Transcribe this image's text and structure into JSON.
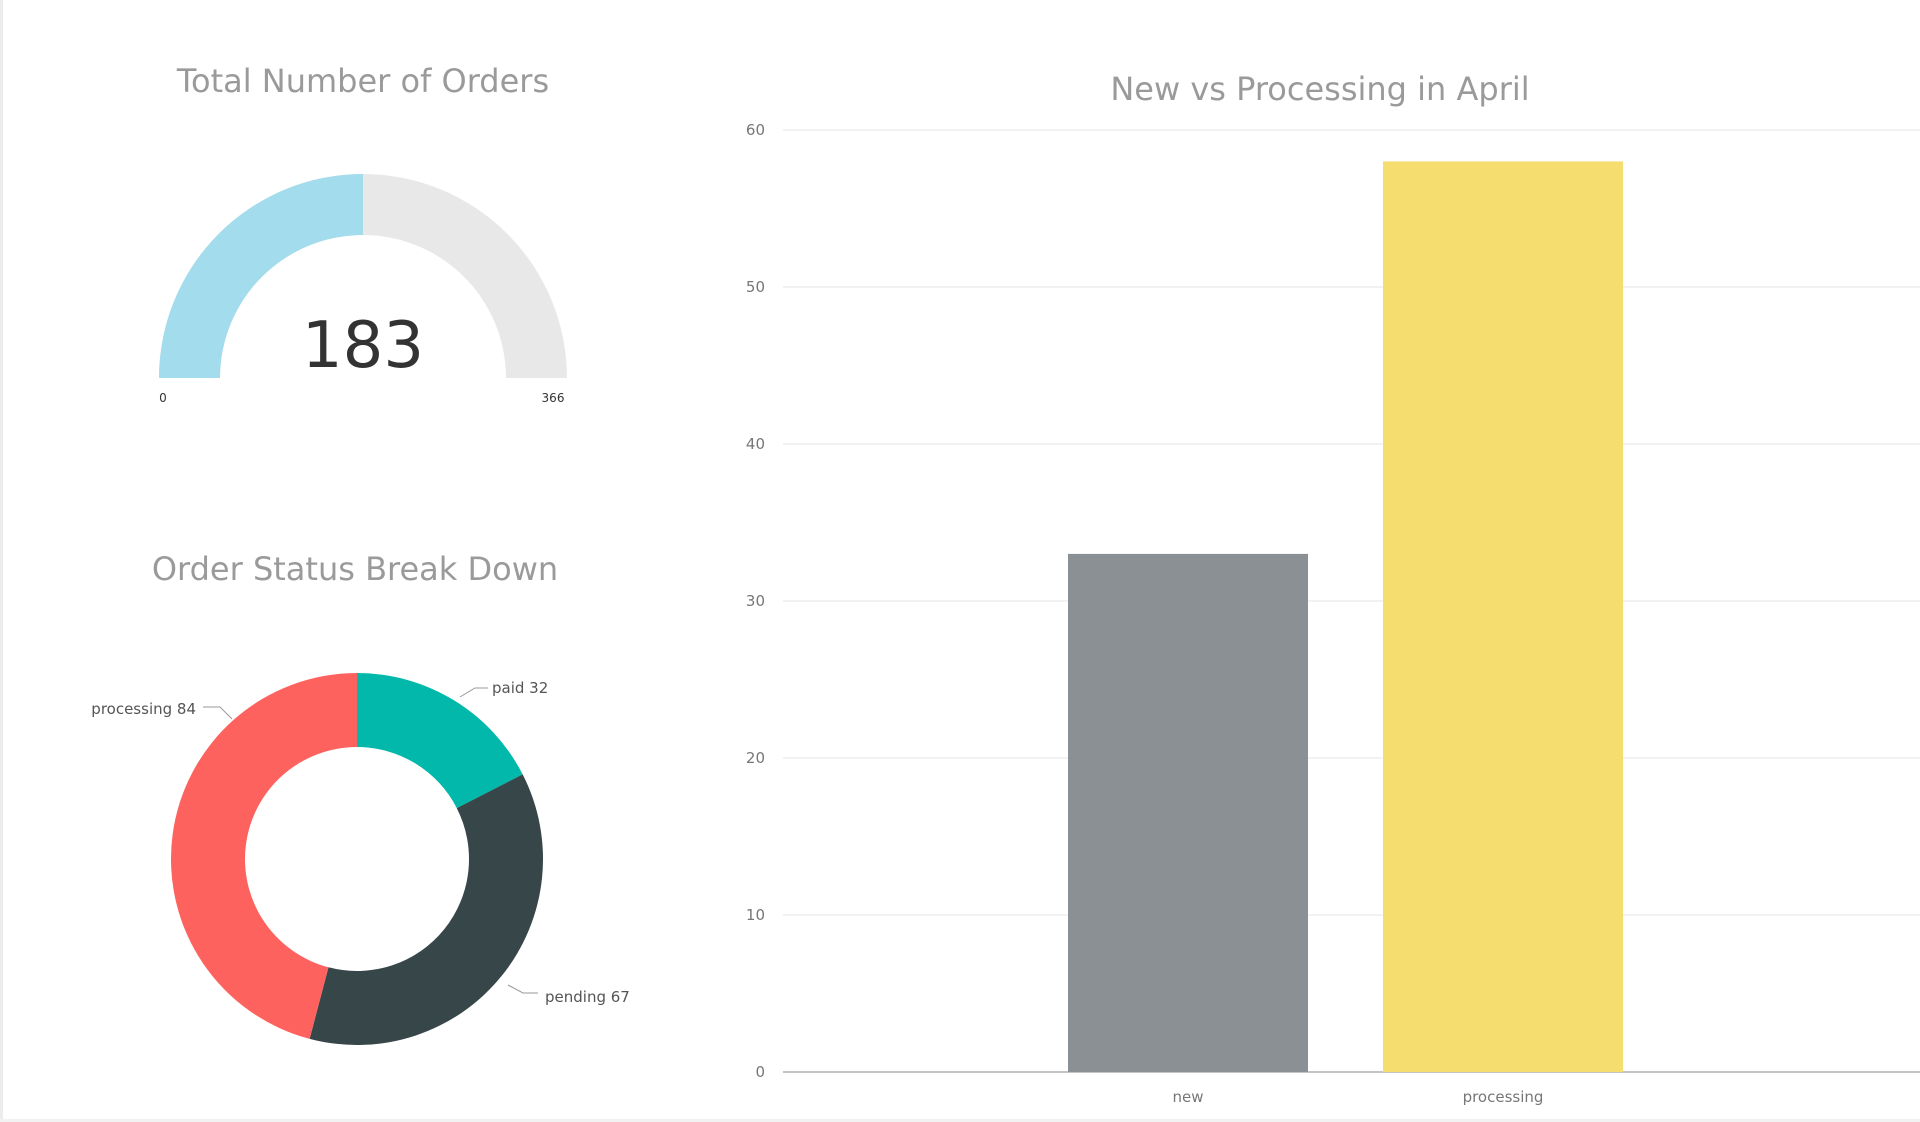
{
  "gauge": {
    "title": "Total Number of Orders",
    "value": 183,
    "value_label": "183",
    "min": 0,
    "min_label": "0",
    "max": 366,
    "max_label": "366",
    "fill_color": "#a3dcec",
    "track_color": "#e8e8e8"
  },
  "donut": {
    "title": "Order Status Break Down",
    "slices": [
      {
        "label": "paid",
        "value": 32,
        "text": "paid 32",
        "color": "#01b8aa"
      },
      {
        "label": "pending",
        "value": 67,
        "text": "pending 67",
        "color": "#374649"
      },
      {
        "label": "processing",
        "value": 84,
        "text": "processing 84",
        "color": "#fd625e"
      }
    ]
  },
  "chart_data": {
    "type": "bar",
    "title": "New vs Processing in April",
    "categories": [
      "new",
      "processing"
    ],
    "values": [
      33,
      58
    ],
    "colors": [
      "#8a9093",
      "#f6dd70"
    ],
    "ylim": [
      0,
      60
    ],
    "yticks": [
      0,
      10,
      20,
      30,
      40,
      50,
      60
    ],
    "grid": true,
    "xlabel": "",
    "ylabel": ""
  }
}
